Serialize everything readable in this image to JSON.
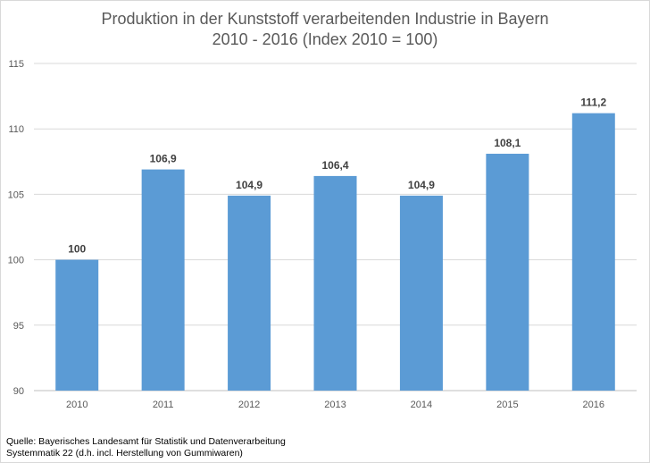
{
  "chart_data": {
    "type": "bar",
    "title": "Produktion in der Kunststoff verarbeitenden Industrie in Bayern",
    "subtitle": "2010 - 2016 (Index 2010 = 100)",
    "categories": [
      "2010",
      "2011",
      "2012",
      "2013",
      "2014",
      "2015",
      "2016"
    ],
    "values": [
      100,
      106.9,
      104.9,
      106.4,
      104.9,
      108.1,
      111.2
    ],
    "data_labels": [
      "100",
      "106,9",
      "104,9",
      "106,4",
      "104,9",
      "108,1",
      "111,2"
    ],
    "xlabel": "",
    "ylabel": "",
    "ylim": [
      90,
      115
    ],
    "yticks": [
      90,
      95,
      100,
      105,
      110,
      115
    ],
    "grid": true,
    "bar_color": "#5b9bd5",
    "grid_color": "#d9d9d9"
  },
  "footer": {
    "source_line": "Quelle:  Bayerisches Landesamt für Statistik und Datenverarbeitung",
    "note_line": "Systemmatik 22 (d.h. incl. Herstellung von Gummiwaren)"
  }
}
